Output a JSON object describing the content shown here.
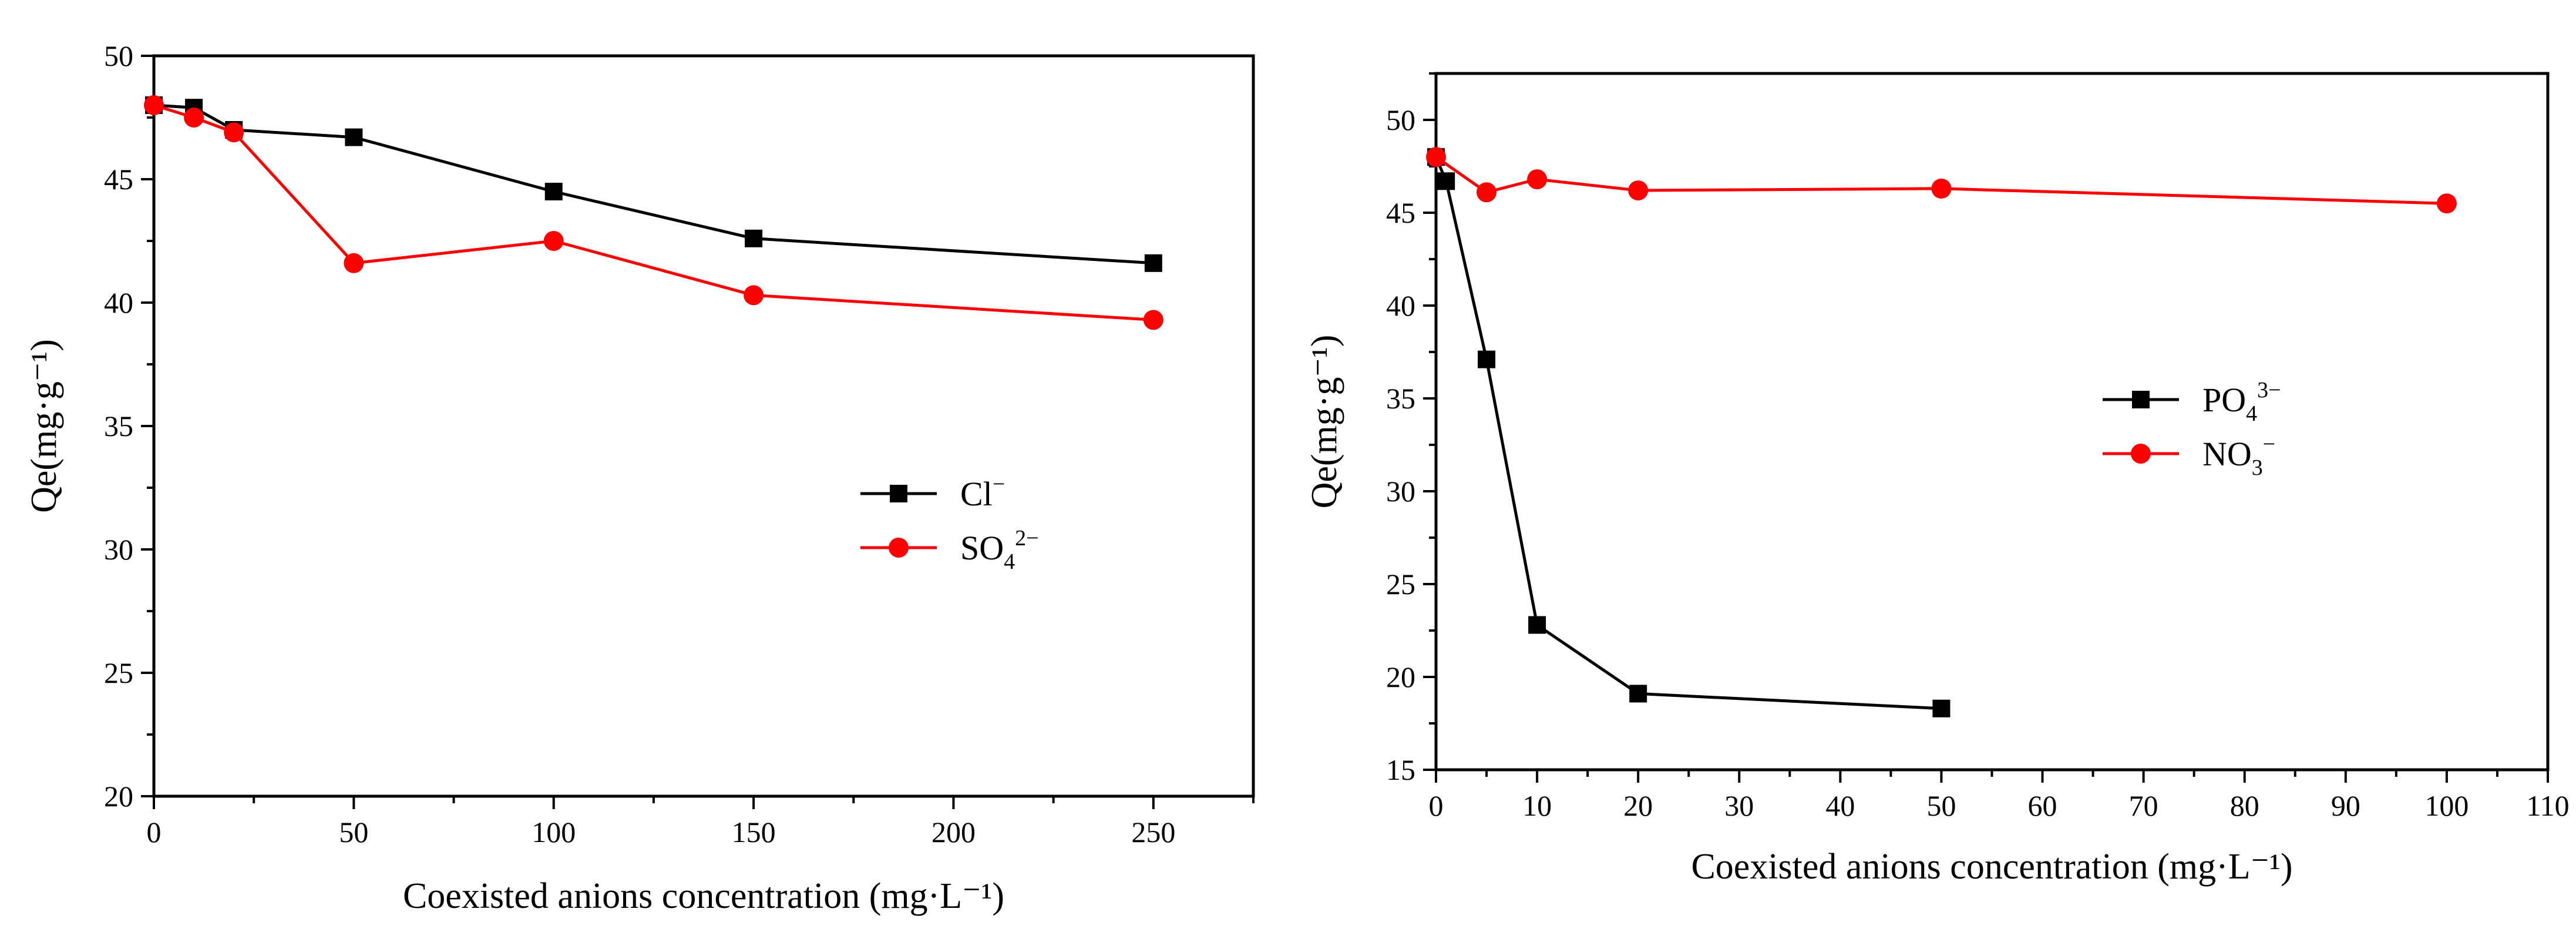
{
  "chart_data": [
    {
      "id": "left",
      "type": "line",
      "title": "",
      "xlabel": "Coexisted anions concentration (mg·L⁻¹)",
      "ylabel": "Qe(mg·g⁻¹)",
      "xlim": [
        0,
        275
      ],
      "ylim": [
        20,
        50
      ],
      "xticks": [
        0,
        50,
        100,
        150,
        200,
        250
      ],
      "yticks": [
        20,
        25,
        30,
        35,
        40,
        45,
        50
      ],
      "xticklabels": [
        "0",
        "50",
        "100",
        "150",
        "200",
        "250"
      ],
      "yticklabels": [
        "20",
        "25",
        "30",
        "35",
        "40",
        "45",
        "50"
      ],
      "legend_position": "center-right",
      "series": [
        {
          "name": "Cl⁻",
          "legend_base": "Cl",
          "legend_sub": "",
          "legend_sup": "−",
          "marker": "square",
          "color": "#000000",
          "x": [
            0,
            10,
            20,
            50,
            100,
            150,
            250
          ],
          "y": [
            48.0,
            47.9,
            47.0,
            46.7,
            44.5,
            42.6,
            41.6
          ]
        },
        {
          "name": "SO₄²⁻",
          "legend_base": "SO",
          "legend_sub": "4",
          "legend_sup": "2−",
          "marker": "circle",
          "color": "#ff0000",
          "x": [
            0,
            10,
            20,
            50,
            100,
            150,
            250
          ],
          "y": [
            48.0,
            47.5,
            46.9,
            41.6,
            42.5,
            40.3,
            39.3
          ]
        }
      ]
    },
    {
      "id": "right",
      "type": "line",
      "title": "",
      "xlabel": "Coexisted anions concentration (mg·L⁻¹)",
      "ylabel": "Qe(mg·g⁻¹)",
      "xlim": [
        0,
        110
      ],
      "ylim": [
        15,
        52.5
      ],
      "xticks": [
        0,
        10,
        20,
        30,
        40,
        50,
        60,
        70,
        80,
        90,
        100,
        110
      ],
      "yticks": [
        15,
        20,
        25,
        30,
        35,
        40,
        45,
        50
      ],
      "xticklabels": [
        "0",
        "10",
        "20",
        "30",
        "40",
        "50",
        "60",
        "70",
        "80",
        "90",
        "100",
        "110"
      ],
      "yticklabels": [
        "15",
        "20",
        "25",
        "30",
        "35",
        "40",
        "45",
        "50"
      ],
      "legend_position": "center-right",
      "series": [
        {
          "name": "PO₄³⁻",
          "legend_base": "PO",
          "legend_sub": "4",
          "legend_sup": "3−",
          "marker": "square",
          "color": "#000000",
          "x": [
            0,
            1,
            5,
            10,
            20,
            50
          ],
          "y": [
            48.0,
            46.7,
            37.1,
            22.8,
            19.1,
            18.3
          ]
        },
        {
          "name": "NO₃⁻",
          "legend_base": "NO",
          "legend_sub": "3",
          "legend_sup": "−",
          "marker": "circle",
          "color": "#ff0000",
          "x": [
            0,
            5,
            10,
            20,
            50,
            100
          ],
          "y": [
            48.0,
            46.1,
            46.8,
            46.2,
            46.3,
            45.5
          ]
        }
      ]
    }
  ]
}
